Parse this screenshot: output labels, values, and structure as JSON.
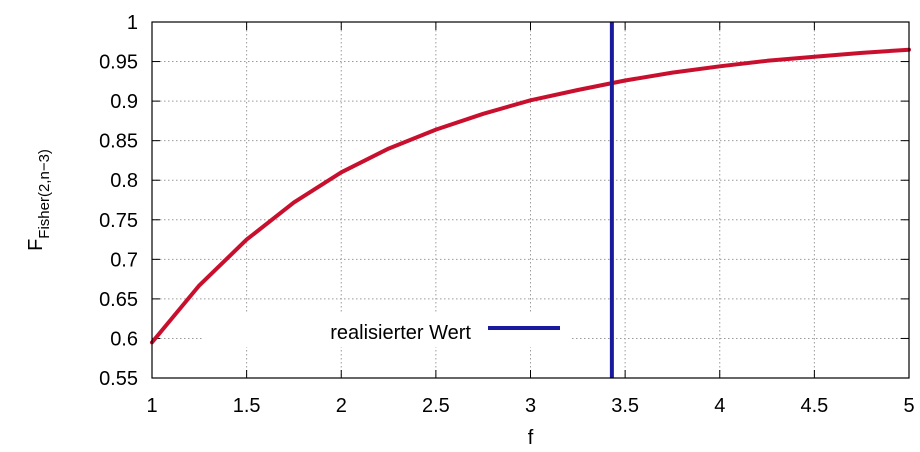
{
  "chart_data": {
    "type": "line",
    "xlabel": "f",
    "ylabel_main": "F",
    "ylabel_sub": "Fisher(2,n−3)",
    "xlim": [
      1,
      5
    ],
    "ylim": [
      0.55,
      1
    ],
    "xticks": [
      "1",
      "1.5",
      "2",
      "2.5",
      "3",
      "3.5",
      "4",
      "4.5",
      "5"
    ],
    "yticks": [
      "0.55",
      "0.6",
      "0.65",
      "0.7",
      "0.75",
      "0.8",
      "0.85",
      "0.9",
      "0.95",
      "1"
    ],
    "grid": true,
    "legend_placement": "bottom-center",
    "series": [
      {
        "type": "cdf-curve",
        "color": "#c8102e",
        "x": [
          1.0,
          1.25,
          1.5,
          1.75,
          2.0,
          2.25,
          2.5,
          2.75,
          3.0,
          3.25,
          3.5,
          3.75,
          4.0,
          4.25,
          4.5,
          4.75,
          5.0
        ],
        "y": [
          0.595,
          0.667,
          0.725,
          0.772,
          0.81,
          0.84,
          0.864,
          0.884,
          0.901,
          0.914,
          0.926,
          0.936,
          0.944,
          0.951,
          0.956,
          0.961,
          0.965
        ]
      },
      {
        "name": "realisierter Wert",
        "type": "vertical-line",
        "color": "#1a1a9c",
        "x": 3.43
      }
    ]
  }
}
